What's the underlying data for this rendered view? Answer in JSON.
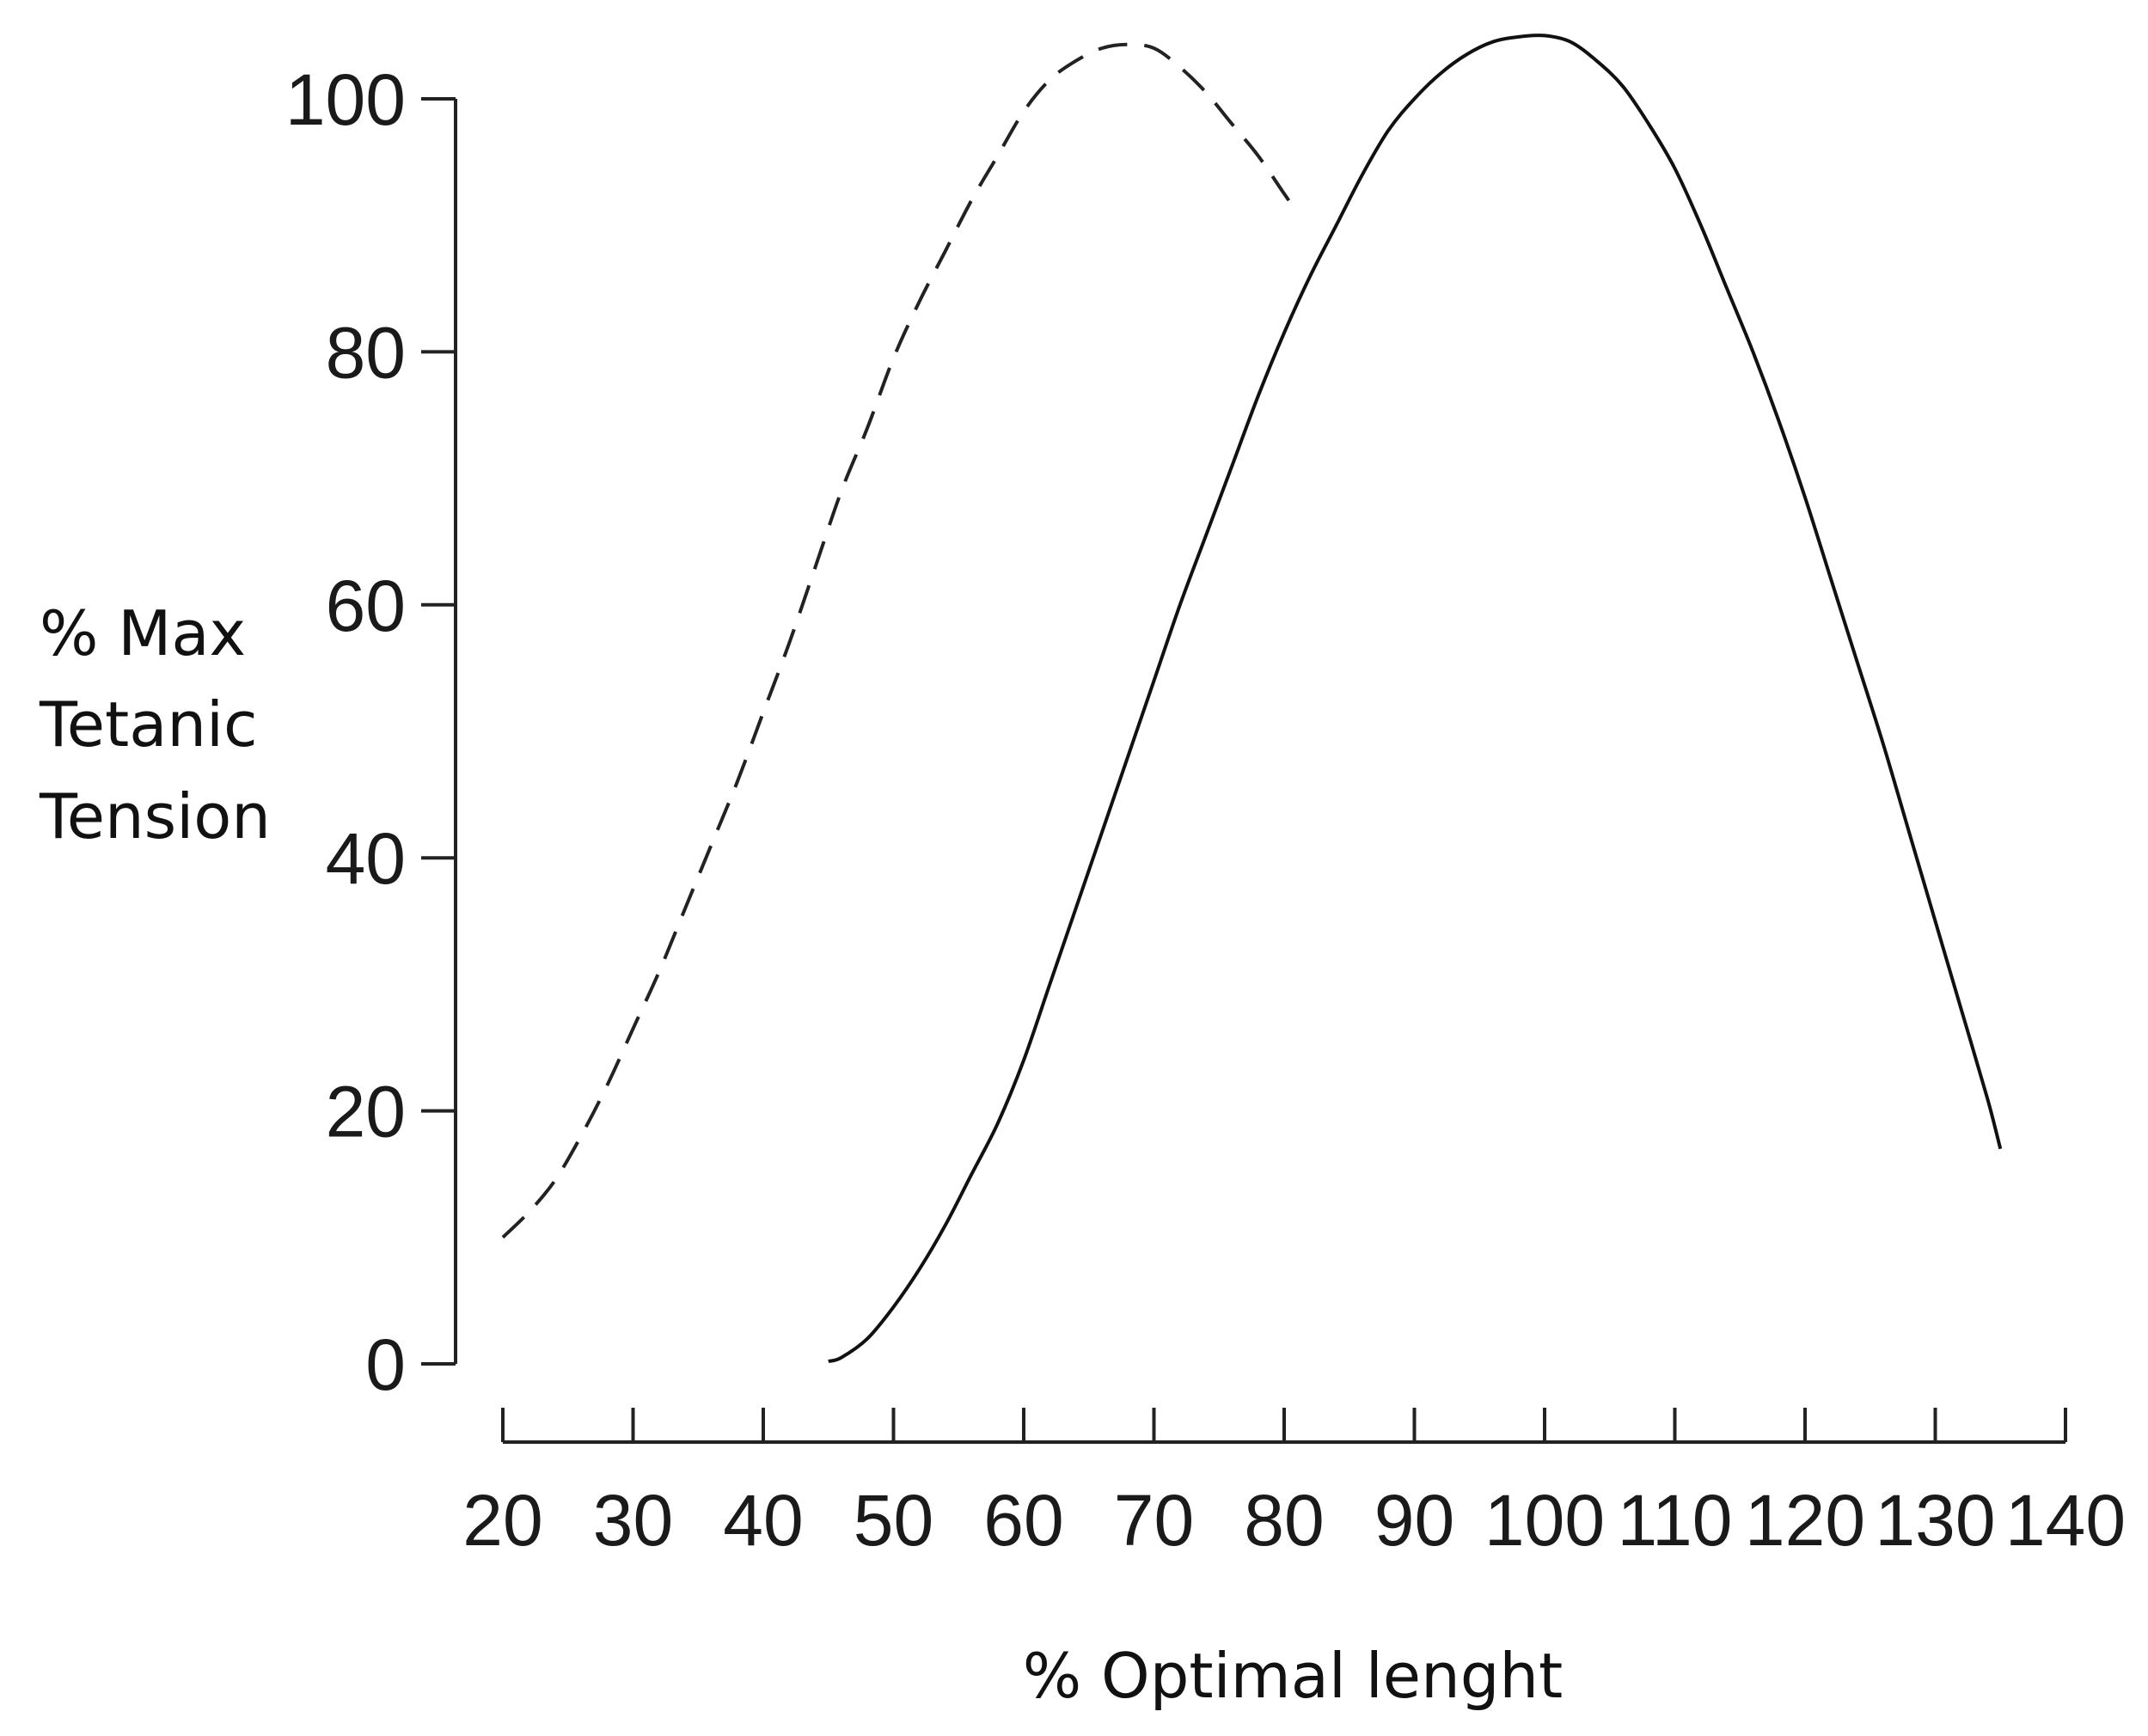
{
  "chart_data": {
    "type": "line",
    "title": "",
    "ylabel_lines": [
      "% Max",
      "Tetanic",
      "Tension"
    ],
    "xlabel": "% Optimal lenght",
    "xlim": [
      20,
      140
    ],
    "ylim": [
      0,
      100
    ],
    "x_ticks": [
      20,
      30,
      40,
      50,
      60,
      70,
      80,
      90,
      100,
      110,
      120,
      130,
      140
    ],
    "y_ticks": [
      0,
      20,
      40,
      60,
      80,
      100
    ],
    "grid": false,
    "series": [
      {
        "style": "dashed",
        "color": "#222222",
        "points": [
          [
            20,
            10
          ],
          [
            22,
            12
          ],
          [
            24,
            14.5
          ],
          [
            26,
            18
          ],
          [
            28,
            22
          ],
          [
            30,
            26.5
          ],
          [
            32,
            31
          ],
          [
            34,
            36
          ],
          [
            36,
            41
          ],
          [
            38,
            46
          ],
          [
            40,
            51.5
          ],
          [
            42,
            57
          ],
          [
            44,
            63
          ],
          [
            46,
            69
          ],
          [
            48,
            74
          ],
          [
            50,
            79.5
          ],
          [
            52,
            84
          ],
          [
            54,
            88
          ],
          [
            56,
            92
          ],
          [
            58,
            95.5
          ],
          [
            60,
            99
          ],
          [
            62,
            101.5
          ],
          [
            64,
            103
          ],
          [
            66,
            104
          ],
          [
            68,
            104.3
          ],
          [
            70,
            104
          ],
          [
            72,
            102.5
          ],
          [
            74,
            100.5
          ],
          [
            76,
            98
          ],
          [
            78,
            95.5
          ],
          [
            80,
            92.5
          ],
          [
            81,
            91
          ]
        ]
      },
      {
        "style": "solid",
        "color": "#111111",
        "points": [
          [
            45,
            0.2
          ],
          [
            46,
            0.5
          ],
          [
            48,
            2
          ],
          [
            50,
            4.5
          ],
          [
            52,
            7.5
          ],
          [
            54,
            11
          ],
          [
            56,
            15
          ],
          [
            58,
            19
          ],
          [
            60,
            24
          ],
          [
            62,
            30
          ],
          [
            64,
            36
          ],
          [
            66,
            42
          ],
          [
            68,
            48
          ],
          [
            70,
            54
          ],
          [
            72,
            60
          ],
          [
            74,
            65.5
          ],
          [
            76,
            71
          ],
          [
            78,
            76.5
          ],
          [
            80,
            81.5
          ],
          [
            82,
            86
          ],
          [
            84,
            90
          ],
          [
            86,
            94
          ],
          [
            88,
            97.5
          ],
          [
            90,
            100
          ],
          [
            92,
            102
          ],
          [
            94,
            103.5
          ],
          [
            96,
            104.5
          ],
          [
            98,
            104.9
          ],
          [
            100,
            105
          ],
          [
            102,
            104.5
          ],
          [
            104,
            103
          ],
          [
            106,
            101
          ],
          [
            108,
            98
          ],
          [
            110,
            94.5
          ],
          [
            112,
            90
          ],
          [
            114,
            85
          ],
          [
            116,
            80
          ],
          [
            118,
            74.5
          ],
          [
            120,
            68.5
          ],
          [
            122,
            62
          ],
          [
            124,
            55.5
          ],
          [
            126,
            49
          ],
          [
            128,
            42
          ],
          [
            130,
            35
          ],
          [
            132,
            28
          ],
          [
            134,
            21
          ],
          [
            135,
            17
          ]
        ]
      }
    ]
  }
}
